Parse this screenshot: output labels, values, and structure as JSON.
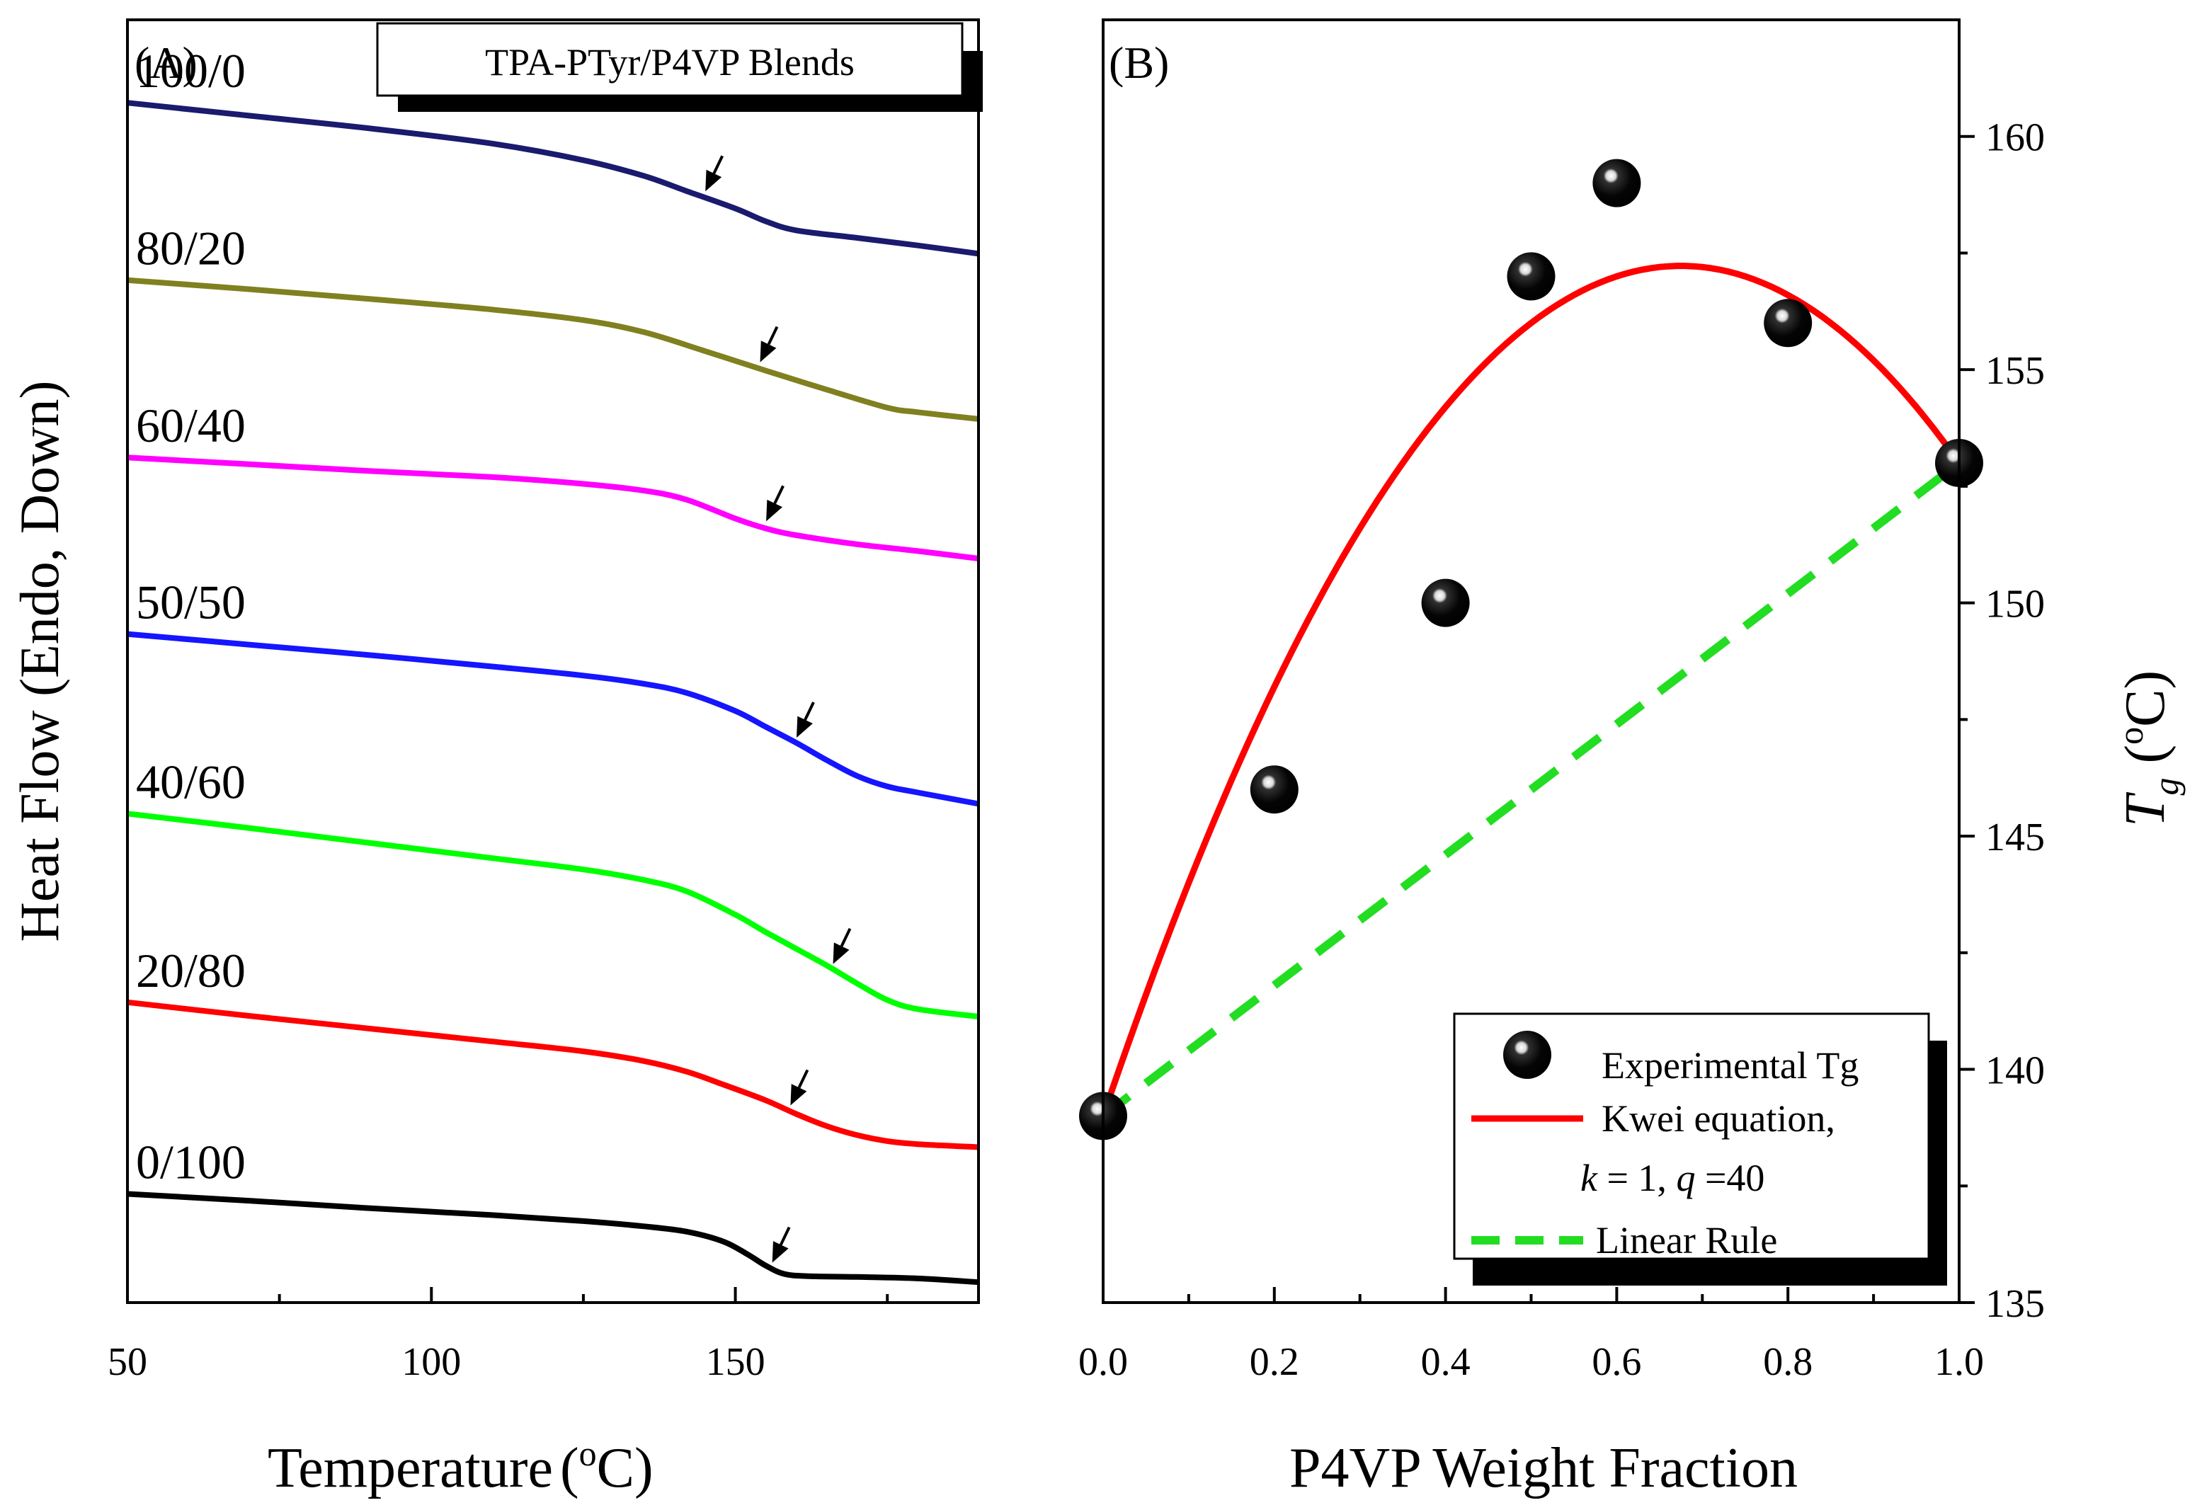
{
  "chart_data": [
    {
      "panel_label": "(A)",
      "type": "line",
      "title": "TPA-PTyr/P4VP Blends",
      "xlabel": "Temperature",
      "xlabel_unit": "(oC)",
      "ylabel": "Heat Flow (Endo, Down)",
      "xlim": [
        50,
        190
      ],
      "xticks": [
        50,
        100,
        150
      ],
      "xtick_labels": [
        "50",
        "100",
        "150"
      ],
      "yticks_shown": false,
      "series": [
        {
          "name": "100/0",
          "color": "#1a1a6e",
          "tg_arrow": 146,
          "x": [
            50,
            70,
            90,
            110,
            125,
            135,
            142,
            150,
            155,
            160,
            170,
            180,
            190
          ],
          "y": [
            159.0,
            157.3,
            155.6,
            153.6,
            151.4,
            149.3,
            147.3,
            145.0,
            143.3,
            142.1,
            141.1,
            140.1,
            139.0
          ]
        },
        {
          "name": "80/20",
          "color": "#808020",
          "tg_arrow": 155,
          "x": [
            50,
            70,
            90,
            110,
            125,
            135,
            145,
            155,
            165,
            175,
            180,
            190
          ],
          "y": [
            135.5,
            134.3,
            133.0,
            131.6,
            130.2,
            128.6,
            126.1,
            123.5,
            121.0,
            118.6,
            118.0,
            117.1
          ]
        },
        {
          "name": "60/40",
          "color": "#ff00ff",
          "tg_arrow": 156,
          "x": [
            50,
            70,
            90,
            110,
            125,
            135,
            142,
            150,
            155,
            160,
            170,
            180,
            190
          ],
          "y": [
            112.0,
            111.1,
            110.2,
            109.4,
            108.5,
            107.6,
            106.4,
            103.9,
            102.6,
            101.7,
            100.5,
            99.6,
            98.6
          ]
        },
        {
          "name": "50/50",
          "color": "#1515ff",
          "tg_arrow": 161,
          "x": [
            50,
            70,
            90,
            110,
            125,
            135,
            142,
            150,
            155,
            160,
            165,
            170,
            175,
            180,
            190
          ],
          "y": [
            88.6,
            87.2,
            85.8,
            84.3,
            83.1,
            82.0,
            80.8,
            78.4,
            76.3,
            74.2,
            71.9,
            69.8,
            68.4,
            67.6,
            66.1
          ]
        },
        {
          "name": "40/60",
          "color": "#00ff00",
          "tg_arrow": 167,
          "x": [
            50,
            70,
            90,
            110,
            125,
            135,
            142,
            150,
            155,
            160,
            165,
            170,
            175,
            180,
            190
          ],
          "y": [
            64.8,
            62.9,
            60.9,
            58.9,
            57.4,
            56.0,
            54.5,
            51.4,
            49.1,
            46.9,
            44.7,
            42.3,
            40.1,
            38.9,
            37.9
          ]
        },
        {
          "name": "20/80",
          "color": "#ff0000",
          "tg_arrow": 160,
          "x": [
            50,
            70,
            90,
            110,
            125,
            135,
            142,
            148,
            155,
            160,
            165,
            170,
            175,
            180,
            190
          ],
          "y": [
            39.8,
            38.0,
            36.3,
            34.6,
            33.3,
            32.0,
            30.6,
            28.9,
            26.8,
            25.0,
            23.4,
            22.2,
            21.4,
            21.0,
            20.6
          ]
        },
        {
          "name": "0/100",
          "color": "#000000",
          "tg_arrow": 157,
          "x": [
            50,
            70,
            90,
            110,
            125,
            135,
            142,
            148,
            152,
            155,
            158,
            162,
            170,
            180,
            190
          ],
          "y": [
            14.4,
            13.5,
            12.5,
            11.6,
            10.8,
            10.1,
            9.4,
            8.1,
            6.4,
            4.9,
            3.8,
            3.5,
            3.4,
            3.2,
            2.7
          ]
        }
      ]
    },
    {
      "panel_label": "(B)",
      "type": "scatter",
      "xlabel": "P4VP Weight Fraction",
      "ylabel": "T",
      "ylabel_sub": "g",
      "ylabel_unit": "(oC)",
      "xlim": [
        0.0,
        1.0
      ],
      "ylim": [
        135,
        162.5
      ],
      "xticks": [
        0.0,
        0.2,
        0.4,
        0.6,
        0.8,
        1.0
      ],
      "xtick_labels": [
        "0.0",
        "0.2",
        "0.4",
        "0.6",
        "0.8",
        "1.0"
      ],
      "yticks": [
        135,
        140,
        145,
        150,
        155,
        160
      ],
      "ytick_labels": [
        "135",
        "140",
        "145",
        "150",
        "155",
        "160"
      ],
      "legend": [
        {
          "label": "Experimental Tg"
        },
        {
          "label": "Kwei equation,"
        },
        {
          "label_k": "k",
          "label_eq1": " = 1, ",
          "label_q": "q",
          "label_eq2": " =40"
        },
        {
          "label": "Linear Rule"
        }
      ],
      "legend_position": "bottom-right",
      "series": [
        {
          "name": "Experimental Tg",
          "type": "scatter",
          "color": "#000000",
          "x": [
            0.0,
            0.2,
            0.4,
            0.5,
            0.6,
            0.8,
            1.0
          ],
          "y": [
            139,
            146,
            150,
            157,
            159,
            156,
            153
          ]
        },
        {
          "name": "Kwei equation, k = 1, q =40",
          "type": "line",
          "color": "#ff0000",
          "equation": {
            "tg1": 139,
            "tg2": 153,
            "k": 1,
            "q": 40
          }
        },
        {
          "name": "Linear Rule",
          "type": "line",
          "style": "dashed",
          "color": "#22dd22",
          "x": [
            0.0,
            1.0
          ],
          "y": [
            139,
            153
          ]
        }
      ]
    }
  ]
}
